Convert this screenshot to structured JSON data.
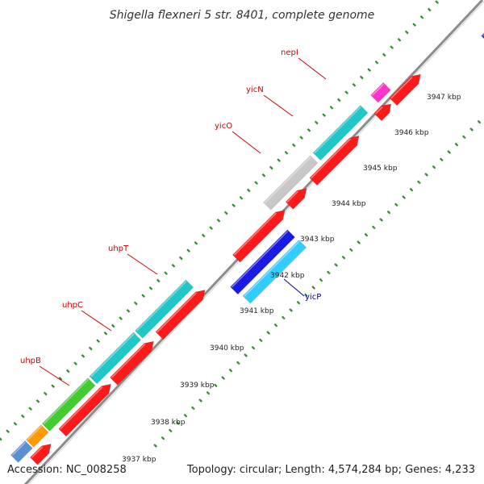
{
  "title": "Shigella flexneri 5 str. 8401, complete genome",
  "accession": "Accession: NC_008258",
  "topology": "Topology: circular; Length: 4,574,284 bp; Genes: 4,233",
  "colors": {
    "axis": "#8c8c8c",
    "tick": "#2e8b2e",
    "label_red": "#cc0000",
    "label_blue": "#0000aa",
    "red": "#ff1a1a",
    "cyan": "#1fc8c8",
    "gray": "#c8c8c8",
    "blue": "#1a1ae6",
    "skyblue": "#33ccff",
    "green": "#44cc33",
    "orange": "#ff9900",
    "magenta": "#ff33cc",
    "navy": "#404090",
    "steel": "#5a8fd0"
  },
  "kbp_ticks": [
    "3937 kbp",
    "3938 kbp",
    "3939 kbp",
    "3940 kbp",
    "3941 kbp",
    "3942 kbp",
    "3943 kbp",
    "3944 kbp",
    "3945 kbp",
    "3946 kbp",
    "3947 kbp"
  ],
  "gene_labels": [
    {
      "name": "nepI",
      "color": "label_red"
    },
    {
      "name": "yicN",
      "color": "label_red"
    },
    {
      "name": "yicO",
      "color": "label_red"
    },
    {
      "name": "uhpT",
      "color": "label_red"
    },
    {
      "name": "uhpC",
      "color": "label_red"
    },
    {
      "name": "uhpB",
      "color": "label_red"
    },
    {
      "name": "yicP",
      "color": "label_blue"
    }
  ]
}
